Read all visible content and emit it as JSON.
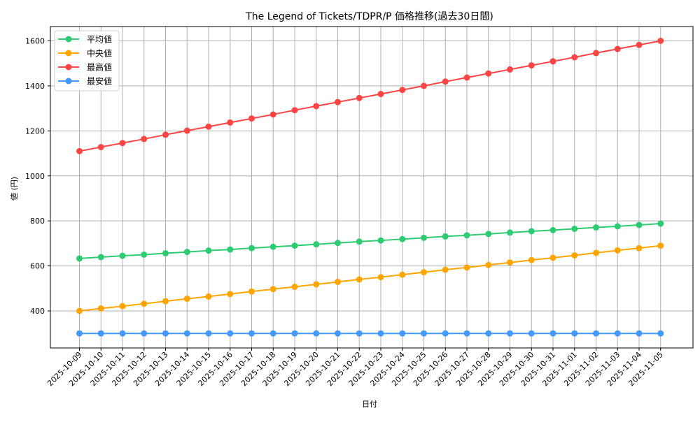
{
  "chart_data": {
    "type": "line",
    "title": "The Legend of Tickets/TDPR/P 価格推移(過去30日間)",
    "xlabel": "日付",
    "ylabel": "値 (円)",
    "ylim": [
      240,
      1660
    ],
    "yticks": [
      400,
      600,
      800,
      1000,
      1200,
      1400,
      1600
    ],
    "grid": true,
    "legend_position": "upper left",
    "categories": [
      "2025-10-09",
      "2025-10-10",
      "2025-10-11",
      "2025-10-12",
      "2025-10-13",
      "2025-10-14",
      "2025-10-15",
      "2025-10-16",
      "2025-10-17",
      "2025-10-18",
      "2025-10-19",
      "2025-10-20",
      "2025-10-21",
      "2025-10-22",
      "2025-10-23",
      "2025-10-24",
      "2025-10-25",
      "2025-10-26",
      "2025-10-27",
      "2025-10-28",
      "2025-10-29",
      "2025-10-30",
      "2025-10-31",
      "2025-11-01",
      "2025-11-02",
      "2025-11-03",
      "2025-11-04",
      "2025-11-05"
    ],
    "series": [
      {
        "name": "平均値",
        "color": "#2ecc71",
        "values": [
          633,
          639,
          645,
          650,
          656,
          662,
          668,
          673,
          679,
          685,
          690,
          696,
          702,
          708,
          713,
          719,
          725,
          731,
          736,
          742,
          748,
          754,
          759,
          765,
          771,
          776,
          782,
          788
        ]
      },
      {
        "name": "中央値",
        "color": "#ffa500",
        "values": [
          400,
          411,
          421,
          432,
          443,
          454,
          464,
          475,
          486,
          497,
          507,
          518,
          529,
          540,
          550,
          561,
          572,
          583,
          593,
          604,
          615,
          626,
          636,
          647,
          658,
          669,
          679,
          690
        ]
      },
      {
        "name": "最高値",
        "color": "#ff4444",
        "values": [
          1110,
          1128,
          1146,
          1164,
          1183,
          1201,
          1219,
          1237,
          1255,
          1273,
          1292,
          1310,
          1328,
          1346,
          1364,
          1382,
          1400,
          1419,
          1437,
          1455,
          1473,
          1491,
          1509,
          1527,
          1546,
          1564,
          1582,
          1600
        ]
      },
      {
        "name": "最安値",
        "color": "#4499ff",
        "values": [
          300,
          300,
          300,
          300,
          300,
          300,
          300,
          300,
          300,
          300,
          300,
          300,
          300,
          300,
          300,
          300,
          300,
          300,
          300,
          300,
          300,
          300,
          300,
          300,
          300,
          300,
          300,
          300
        ]
      }
    ]
  }
}
